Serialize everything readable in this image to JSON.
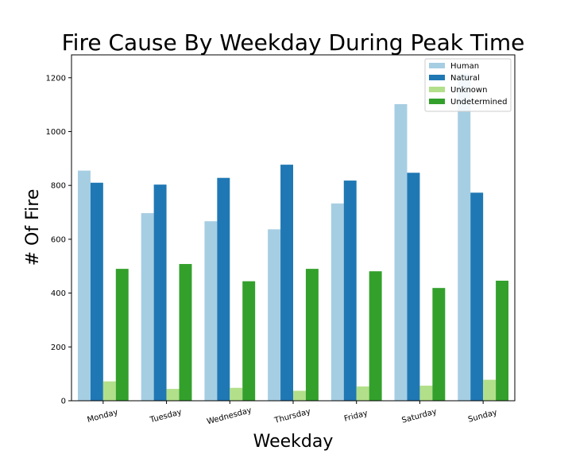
{
  "chart_data": {
    "type": "bar",
    "title": "Fire Cause By Weekday During Peak Time",
    "xlabel": "Weekday",
    "ylabel": "# Of Fire",
    "categories": [
      "Monday",
      "Tuesday",
      "Wednesday",
      "Thursday",
      "Friday",
      "Saturday",
      "Sunday"
    ],
    "series": [
      {
        "name": "Human",
        "color": "#a6cee3",
        "values": [
          855,
          697,
          667,
          637,
          733,
          1102,
          1215
        ]
      },
      {
        "name": "Natural",
        "color": "#1f78b4",
        "values": [
          810,
          803,
          828,
          877,
          818,
          847,
          773
        ]
      },
      {
        "name": "Unknown",
        "color": "#b2df8a",
        "values": [
          72,
          44,
          48,
          37,
          53,
          56,
          78
        ]
      },
      {
        "name": "Undetermined",
        "color": "#33a02c",
        "values": [
          490,
          508,
          444,
          490,
          481,
          419,
          446
        ]
      }
    ],
    "ylim": [
      0,
      1285
    ],
    "yticks": [
      0,
      200,
      400,
      600,
      800,
      1000,
      1200
    ],
    "grid": false,
    "legend_position": "top-right"
  }
}
